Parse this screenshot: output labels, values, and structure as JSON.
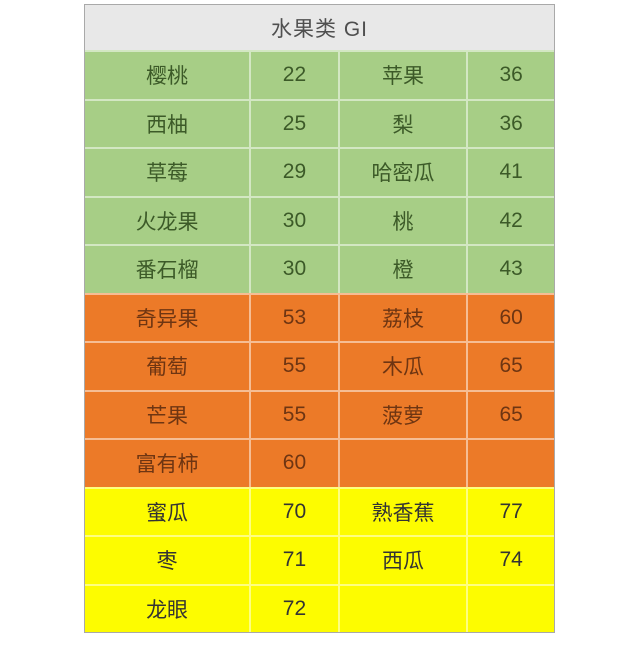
{
  "title": "水果类 GI",
  "colors": {
    "header_bg": "#e8e8e8",
    "header_text": "#4f4f4f",
    "low_bg": "#a7ce86",
    "low_text": "#3c5a28",
    "medium_bg": "#ec7a28",
    "medium_text": "#6e3512",
    "high_bg": "#fdfc00",
    "high_text": "#333333",
    "outer_border": "#a9a9a9"
  },
  "table": {
    "sections": [
      {
        "level": "low",
        "bg": "#a7ce86",
        "text_color": "#3c5a28",
        "rows": [
          [
            "樱桃",
            "22",
            "苹果",
            "36"
          ],
          [
            "西柚",
            "25",
            "梨",
            "36"
          ],
          [
            "草莓",
            "29",
            "哈密瓜",
            "41"
          ],
          [
            "火龙果",
            "30",
            "桃",
            "42"
          ],
          [
            "番石榴",
            "30",
            "橙",
            "43"
          ]
        ]
      },
      {
        "level": "medium",
        "bg": "#ec7a28",
        "text_color": "#6e3512",
        "rows": [
          [
            "奇异果",
            "53",
            "荔枝",
            "60"
          ],
          [
            "葡萄",
            "55",
            "木瓜",
            "65"
          ],
          [
            "芒果",
            "55",
            "菠萝",
            "65"
          ],
          [
            "富有柿",
            "60",
            "",
            ""
          ]
        ]
      },
      {
        "level": "high",
        "bg": "#fdfc00",
        "text_color": "#333333",
        "rows": [
          [
            "蜜瓜",
            "70",
            "熟香蕉",
            "77"
          ],
          [
            "枣",
            "71",
            "西瓜",
            "74"
          ],
          [
            "龙眼",
            "72",
            "",
            ""
          ]
        ]
      }
    ]
  },
  "chart_data": {
    "type": "table",
    "title": "水果类 GI",
    "groups": [
      {
        "gi_level": "low",
        "color": "#a7ce86",
        "items": [
          {
            "fruit": "樱桃",
            "gi": 22
          },
          {
            "fruit": "西柚",
            "gi": 25
          },
          {
            "fruit": "草莓",
            "gi": 29
          },
          {
            "fruit": "火龙果",
            "gi": 30
          },
          {
            "fruit": "番石榴",
            "gi": 30
          },
          {
            "fruit": "苹果",
            "gi": 36
          },
          {
            "fruit": "梨",
            "gi": 36
          },
          {
            "fruit": "哈密瓜",
            "gi": 41
          },
          {
            "fruit": "桃",
            "gi": 42
          },
          {
            "fruit": "橙",
            "gi": 43
          }
        ]
      },
      {
        "gi_level": "medium",
        "color": "#ec7a28",
        "items": [
          {
            "fruit": "奇异果",
            "gi": 53
          },
          {
            "fruit": "葡萄",
            "gi": 55
          },
          {
            "fruit": "芒果",
            "gi": 55
          },
          {
            "fruit": "富有柿",
            "gi": 60
          },
          {
            "fruit": "荔枝",
            "gi": 60
          },
          {
            "fruit": "木瓜",
            "gi": 65
          },
          {
            "fruit": "菠萝",
            "gi": 65
          }
        ]
      },
      {
        "gi_level": "high",
        "color": "#fdfc00",
        "items": [
          {
            "fruit": "蜜瓜",
            "gi": 70
          },
          {
            "fruit": "枣",
            "gi": 71
          },
          {
            "fruit": "龙眼",
            "gi": 72
          },
          {
            "fruit": "西瓜",
            "gi": 74
          },
          {
            "fruit": "熟香蕉",
            "gi": 77
          }
        ]
      }
    ]
  }
}
